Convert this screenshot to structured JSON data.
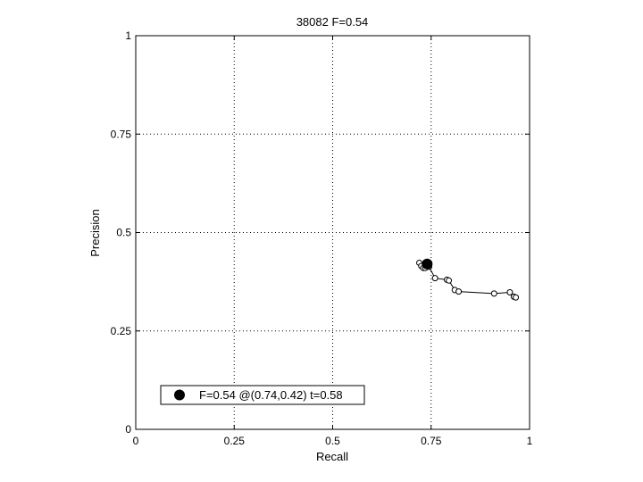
{
  "chart_data": {
    "type": "line",
    "title": "38082 F=0.54",
    "xlabel": "Recall",
    "ylabel": "Precision",
    "xlim": [
      0,
      1
    ],
    "ylim": [
      0,
      1
    ],
    "xticks": [
      0,
      0.25,
      0.5,
      0.75,
      1
    ],
    "xtick_labels": [
      "0",
      "0.25",
      "0.5",
      "0.75",
      "1"
    ],
    "yticks": [
      0,
      0.25,
      0.5,
      0.75,
      1
    ],
    "ytick_labels": [
      "0",
      "0.25",
      "0.5",
      "0.75",
      "1"
    ],
    "grid": true,
    "legend_position": "bottom-left",
    "series": [
      {
        "x": [
          0.72,
          0.725,
          0.73,
          0.735,
          0.74,
          0.745,
          0.76,
          0.79,
          0.795,
          0.81,
          0.82,
          0.91,
          0.95,
          0.96,
          0.965
        ],
        "y": [
          0.423,
          0.415,
          0.41,
          0.41,
          0.418,
          0.413,
          0.384,
          0.38,
          0.378,
          0.354,
          0.35,
          0.345,
          0.348,
          0.337,
          0.335
        ]
      }
    ],
    "highlight_point": {
      "x": 0.74,
      "y": 0.42
    },
    "legend_text": "F=0.54 @(0.74,0.42) t=0.58"
  }
}
